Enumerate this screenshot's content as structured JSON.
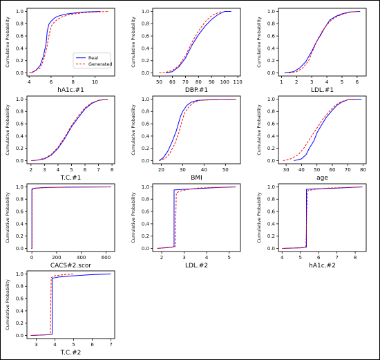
{
  "chart_data": [
    {
      "type": "line",
      "xlabel": "hA1c.#1",
      "ylabel": "Cumulative Probability",
      "xlim": [
        3.8,
        11.8
      ],
      "ylim": [
        -0.05,
        1.05
      ],
      "xticks": [
        4,
        6,
        8,
        10
      ],
      "yticks": [
        0.0,
        0.2,
        0.4,
        0.6,
        0.8,
        1.0
      ],
      "legend": "center-right",
      "series": [
        {
          "name": "Real",
          "color": "#0000ff",
          "dash": "solid",
          "x": [
            4.2,
            4.6,
            5.0,
            5.3,
            5.55,
            5.65,
            5.8,
            6.0,
            6.3,
            6.6,
            7.0,
            7.5,
            8.0,
            9.0,
            10.5
          ],
          "y": [
            0.0,
            0.04,
            0.12,
            0.27,
            0.48,
            0.68,
            0.79,
            0.84,
            0.89,
            0.92,
            0.94,
            0.96,
            0.97,
            0.99,
            1.0
          ]
        },
        {
          "name": "Generated",
          "color": "#ff0000",
          "dash": "dashed",
          "x": [
            4.0,
            4.5,
            5.0,
            5.3,
            5.6,
            5.75,
            5.9,
            6.1,
            6.5,
            7.0,
            7.5,
            8.2,
            9.0,
            10.0,
            11.3
          ],
          "y": [
            0.0,
            0.03,
            0.08,
            0.2,
            0.4,
            0.55,
            0.68,
            0.79,
            0.86,
            0.91,
            0.94,
            0.96,
            0.98,
            0.99,
            1.0
          ]
        }
      ]
    },
    {
      "type": "line",
      "xlabel": "DBP.#1",
      "ylabel": "Cumulative Probability",
      "xlim": [
        45,
        112
      ],
      "ylim": [
        -0.05,
        1.05
      ],
      "xticks": [
        50,
        60,
        70,
        80,
        90,
        100,
        110
      ],
      "yticks": [
        0.0,
        0.2,
        0.4,
        0.6,
        0.8,
        1.0
      ],
      "series": [
        {
          "name": "Real",
          "color": "#0000ff",
          "dash": "solid",
          "x": [
            55,
            60,
            65,
            70,
            75,
            80,
            85,
            90,
            95,
            100,
            105
          ],
          "y": [
            0.0,
            0.02,
            0.1,
            0.24,
            0.45,
            0.62,
            0.76,
            0.87,
            0.95,
            1.0,
            1.0
          ]
        },
        {
          "name": "Generated",
          "color": "#ff0000",
          "dash": "dashed",
          "x": [
            50,
            55,
            60,
            65,
            70,
            75,
            80,
            85,
            90,
            95,
            98
          ],
          "y": [
            0.0,
            0.01,
            0.04,
            0.12,
            0.28,
            0.5,
            0.68,
            0.83,
            0.93,
            0.98,
            1.0
          ]
        }
      ]
    },
    {
      "type": "line",
      "xlabel": "LDL.#1",
      "ylabel": "Cumulative Probability",
      "xlim": [
        0.8,
        6.6
      ],
      "ylim": [
        -0.05,
        1.05
      ],
      "xticks": [
        1,
        2,
        3,
        4,
        5,
        6
      ],
      "yticks": [
        0.0,
        0.2,
        0.4,
        0.6,
        0.8,
        1.0
      ],
      "series": [
        {
          "name": "Real",
          "color": "#0000ff",
          "dash": "solid",
          "x": [
            1.2,
            1.8,
            2.2,
            2.6,
            3.0,
            3.3,
            3.6,
            3.9,
            4.2,
            4.6,
            5.0,
            5.5,
            6.2
          ],
          "y": [
            0.0,
            0.02,
            0.08,
            0.18,
            0.35,
            0.5,
            0.62,
            0.75,
            0.86,
            0.92,
            0.96,
            0.99,
            1.0
          ]
        },
        {
          "name": "Generated",
          "color": "#ff0000",
          "dash": "dashed",
          "x": [
            1.5,
            2.0,
            2.4,
            2.8,
            3.1,
            3.4,
            3.7,
            4.0,
            4.3,
            4.7,
            5.1,
            5.6,
            6.1
          ],
          "y": [
            0.0,
            0.02,
            0.08,
            0.2,
            0.38,
            0.55,
            0.68,
            0.78,
            0.86,
            0.92,
            0.96,
            0.99,
            1.0
          ]
        }
      ]
    },
    {
      "type": "line",
      "xlabel": "T.C.#1",
      "ylabel": "Cumulative Probability",
      "xlim": [
        1.7,
        8.2
      ],
      "ylim": [
        -0.05,
        1.05
      ],
      "xticks": [
        2,
        3,
        4,
        5,
        6,
        7,
        8
      ],
      "yticks": [
        0.0,
        0.2,
        0.4,
        0.6,
        0.8,
        1.0
      ],
      "series": [
        {
          "name": "Real",
          "color": "#0000ff",
          "dash": "solid",
          "x": [
            2.1,
            2.5,
            3.0,
            3.5,
            4.0,
            4.5,
            5.0,
            5.5,
            6.0,
            6.5,
            7.0,
            7.7
          ],
          "y": [
            0.0,
            0.01,
            0.03,
            0.09,
            0.2,
            0.36,
            0.55,
            0.7,
            0.84,
            0.93,
            0.98,
            1.0
          ]
        },
        {
          "name": "Generated",
          "color": "#ff0000",
          "dash": "dashed",
          "x": [
            2.0,
            2.5,
            3.0,
            3.5,
            4.0,
            4.5,
            5.0,
            5.5,
            6.0,
            6.5,
            7.0,
            7.7
          ],
          "y": [
            0.0,
            0.01,
            0.04,
            0.1,
            0.22,
            0.38,
            0.57,
            0.73,
            0.86,
            0.94,
            0.98,
            1.0
          ]
        }
      ]
    },
    {
      "type": "line",
      "xlabel": "BMI",
      "ylabel": "Cumulative Probability",
      "xlim": [
        16,
        57
      ],
      "ylim": [
        -0.05,
        1.05
      ],
      "xticks": [
        20,
        30,
        40,
        50
      ],
      "yticks": [
        0.0,
        0.2,
        0.4,
        0.6,
        0.8,
        1.0
      ],
      "series": [
        {
          "name": "Real",
          "color": "#0000ff",
          "dash": "solid",
          "x": [
            19,
            21,
            23,
            25,
            27,
            28,
            29,
            30,
            32,
            34,
            37,
            42,
            55
          ],
          "y": [
            0.0,
            0.05,
            0.15,
            0.3,
            0.48,
            0.6,
            0.72,
            0.8,
            0.9,
            0.95,
            0.98,
            0.99,
            1.0
          ]
        },
        {
          "name": "Generated",
          "color": "#ff0000",
          "dash": "dashed",
          "x": [
            19,
            22,
            24,
            26,
            28,
            29,
            30,
            31,
            33,
            35,
            38,
            45,
            55
          ],
          "y": [
            0.0,
            0.04,
            0.12,
            0.25,
            0.43,
            0.55,
            0.68,
            0.78,
            0.88,
            0.94,
            0.98,
            0.99,
            1.0
          ]
        }
      ]
    },
    {
      "type": "line",
      "xlabel": "age",
      "ylabel": "Cumulative Probability",
      "xlim": [
        25,
        82
      ],
      "ylim": [
        -0.05,
        1.05
      ],
      "xticks": [
        30,
        40,
        50,
        60,
        70,
        80
      ],
      "yticks": [
        0.0,
        0.2,
        0.4,
        0.6,
        0.8,
        1.0
      ],
      "series": [
        {
          "name": "Real",
          "color": "#0000ff",
          "dash": "solid",
          "x": [
            35,
            40,
            43,
            45,
            48,
            50,
            53,
            56,
            60,
            63,
            66,
            70,
            79
          ],
          "y": [
            0.0,
            0.03,
            0.1,
            0.2,
            0.32,
            0.45,
            0.58,
            0.7,
            0.82,
            0.9,
            0.95,
            0.99,
            1.0
          ]
        },
        {
          "name": "Generated",
          "color": "#ff0000",
          "dash": "dashed",
          "x": [
            28,
            33,
            38,
            42,
            46,
            50,
            54,
            58,
            62,
            66,
            70,
            75
          ],
          "y": [
            0.0,
            0.03,
            0.1,
            0.22,
            0.38,
            0.53,
            0.68,
            0.8,
            0.9,
            0.96,
            0.99,
            1.0
          ]
        }
      ]
    },
    {
      "type": "line",
      "xlabel": "CACS#2.scor",
      "ylabel": "Cumulative Probability",
      "xlim": [
        -40,
        670
      ],
      "ylim": [
        -0.05,
        1.05
      ],
      "xticks": [
        0,
        200,
        400,
        600
      ],
      "yticks": [
        0.0,
        0.2,
        0.4,
        0.6,
        0.8,
        1.0
      ],
      "series": [
        {
          "name": "Real",
          "color": "#0000ff",
          "dash": "solid",
          "x": [
            -5,
            0,
            0,
            5,
            30,
            100,
            300,
            640
          ],
          "y": [
            0.0,
            0.0,
            0.96,
            0.97,
            0.98,
            0.99,
            0.995,
            1.0
          ]
        },
        {
          "name": "Generated",
          "color": "#ff0000",
          "dash": "dashed",
          "x": [
            -5,
            2,
            2,
            10,
            50,
            150,
            300,
            640
          ],
          "y": [
            0.0,
            0.0,
            0.95,
            0.97,
            0.98,
            0.99,
            1.0,
            1.0
          ]
        }
      ]
    },
    {
      "type": "line",
      "xlabel": "LDL.#2",
      "ylabel": "Cumulative Probability",
      "xlim": [
        1.6,
        5.5
      ],
      "ylim": [
        -0.05,
        1.05
      ],
      "xticks": [
        2,
        3,
        4,
        5
      ],
      "yticks": [
        0.0,
        0.2,
        0.4,
        0.6,
        0.8,
        1.0
      ],
      "series": [
        {
          "name": "Real",
          "color": "#0000ff",
          "dash": "solid",
          "x": [
            1.8,
            2.45,
            2.55,
            2.55,
            3.0,
            3.5,
            4.0,
            4.5,
            5.3
          ],
          "y": [
            0.0,
            0.02,
            0.03,
            0.95,
            0.96,
            0.97,
            0.98,
            0.99,
            1.0
          ]
        },
        {
          "name": "Generated",
          "color": "#ff0000",
          "dash": "dashed",
          "x": [
            1.8,
            2.45,
            2.6,
            2.65,
            2.8,
            3.2,
            3.6,
            4.2,
            5.3
          ],
          "y": [
            0.0,
            0.02,
            0.03,
            0.9,
            0.93,
            0.96,
            0.98,
            0.99,
            1.0
          ]
        }
      ]
    },
    {
      "type": "line",
      "xlabel": "hA1c.#2",
      "ylabel": "Cumulative Probability",
      "xlim": [
        3.8,
        8.6
      ],
      "ylim": [
        -0.05,
        1.05
      ],
      "xticks": [
        4,
        5,
        6,
        7,
        8
      ],
      "yticks": [
        0.0,
        0.2,
        0.4,
        0.6,
        0.8,
        1.0
      ],
      "series": [
        {
          "name": "Real",
          "color": "#0000ff",
          "dash": "solid",
          "x": [
            4.0,
            5.0,
            5.3,
            5.33,
            5.33,
            6.0,
            7.0,
            8.4
          ],
          "y": [
            0.0,
            0.01,
            0.02,
            0.02,
            0.96,
            0.97,
            0.98,
            1.0
          ]
        },
        {
          "name": "Generated",
          "color": "#ff0000",
          "dash": "dashed",
          "x": [
            4.0,
            5.0,
            5.3,
            5.38,
            5.42,
            5.8,
            6.5,
            7.5,
            8.4
          ],
          "y": [
            0.0,
            0.01,
            0.02,
            0.9,
            0.94,
            0.96,
            0.98,
            0.99,
            1.0
          ]
        }
      ]
    },
    {
      "type": "line",
      "xlabel": "T.C.#2",
      "ylabel": "Cumulative Probability",
      "xlim": [
        2.5,
        7.2
      ],
      "ylim": [
        -0.05,
        1.05
      ],
      "xticks": [
        3,
        4,
        5,
        6,
        7
      ],
      "yticks": [
        0.0,
        0.2,
        0.4,
        0.6,
        0.8,
        1.0
      ],
      "series": [
        {
          "name": "Real",
          "color": "#0000ff",
          "dash": "solid",
          "x": [
            2.7,
            3.5,
            3.85,
            3.85,
            4.2,
            5.0,
            6.0,
            7.0
          ],
          "y": [
            0.0,
            0.01,
            0.02,
            0.93,
            0.95,
            0.97,
            0.99,
            1.0
          ]
        },
        {
          "name": "Generated",
          "color": "#ff0000",
          "dash": "dashed",
          "x": [
            2.7,
            3.5,
            3.75,
            3.8,
            4.0,
            4.5,
            5.0
          ],
          "y": [
            0.0,
            0.01,
            0.02,
            0.94,
            0.97,
            0.99,
            1.0
          ]
        }
      ]
    }
  ]
}
